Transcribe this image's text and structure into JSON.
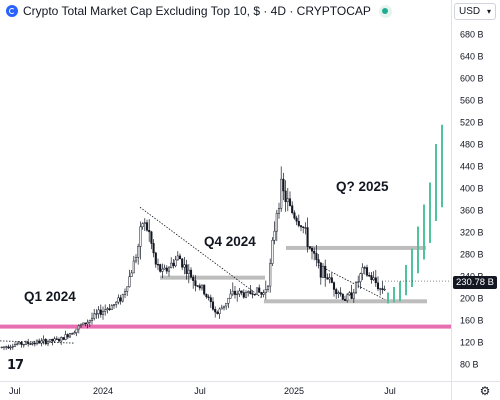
{
  "header": {
    "title": "Crypto Total Market Cap Excluding Top 10, $ · 4D · CRYPTOCAP",
    "currency": "USD"
  },
  "price_tag": "230.78 B",
  "chart_data": {
    "type": "candlestick",
    "title": "Crypto Total Market Cap Excluding Top 10, $ · 4D · CRYPTOCAP",
    "ylabel": "",
    "y_ticks": [
      "680 B",
      "640 B",
      "600 B",
      "560 B",
      "520 B",
      "480 B",
      "440 B",
      "400 B",
      "360 B",
      "320 B",
      "280 B",
      "240 B",
      "200 B",
      "160 B",
      "120 B",
      "80 B"
    ],
    "x_ticks": [
      "Jul",
      "2024",
      "Jul",
      "2025",
      "Jul"
    ],
    "ylim": [
      60,
      700
    ],
    "last_value": 230.78,
    "annotations": [
      "Q1 2024",
      "Q4 2024",
      "Q? 2025"
    ],
    "levels": [
      {
        "name": "support",
        "value": 148,
        "color": "#e56fb0"
      },
      {
        "name": "range-high",
        "value": 291,
        "color": "#bdbdbd"
      },
      {
        "name": "range-mid",
        "value": 237,
        "color": "#bdbdbd"
      },
      {
        "name": "range-low",
        "value": 194,
        "color": "#bdbdbd"
      }
    ],
    "candle_color_up": "#131722",
    "projection_color": "#4fc49a",
    "grid": false,
    "legend": "none"
  }
}
